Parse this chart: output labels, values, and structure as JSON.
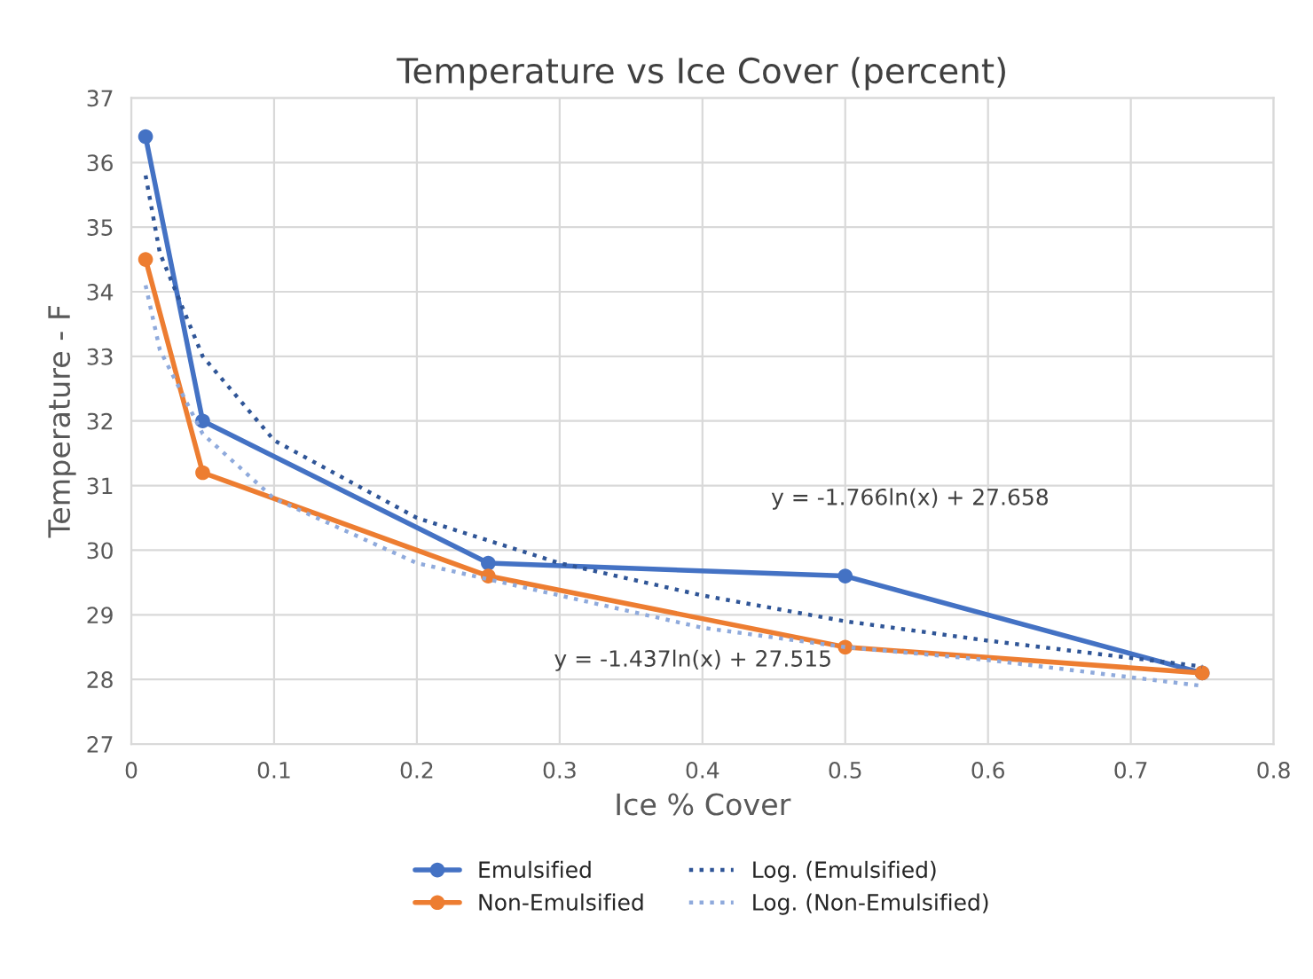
{
  "chart_data": {
    "type": "line",
    "title": "Temperature vs Ice Cover (percent)",
    "xlabel": "Ice % Cover",
    "ylabel": "Temperature - F",
    "xlim": [
      0,
      0.8
    ],
    "xticks": [
      0,
      0.1,
      0.2,
      0.3,
      0.4,
      0.5,
      0.6,
      0.7,
      0.8
    ],
    "ylim": [
      27,
      37
    ],
    "yticks": [
      27,
      28,
      29,
      30,
      31,
      32,
      33,
      34,
      35,
      36,
      37
    ],
    "grid": true,
    "legend": "bottom",
    "marker": "circle",
    "line_style": "solid",
    "series": [
      {
        "name": "Emulsified",
        "color": "#4472c4",
        "x": [
          0.01,
          0.05,
          0.25,
          0.5,
          0.75
        ],
        "values": [
          36.4,
          32.0,
          29.8,
          29.6,
          28.1
        ]
      },
      {
        "name": "Non-Emulsified",
        "color": "#ed7d31",
        "x": [
          0.01,
          0.05,
          0.25,
          0.5,
          0.75
        ],
        "values": [
          34.5,
          31.2,
          29.6,
          28.5,
          28.1
        ]
      },
      {
        "name": "Log. (Emulsified)",
        "color": "#2f5597",
        "marker": "none",
        "line_style": "dotted",
        "x": [
          0.01,
          0.02,
          0.05,
          0.1,
          0.2,
          0.3,
          0.4,
          0.5,
          0.6,
          0.75
        ],
        "values": [
          35.8,
          34.6,
          33.0,
          31.7,
          30.5,
          29.8,
          29.3,
          28.9,
          28.6,
          28.2
        ]
      },
      {
        "name": "Log. (Non-Emulsified)",
        "color": "#8faadc",
        "marker": "none",
        "line_style": "dotted",
        "x": [
          0.01,
          0.02,
          0.05,
          0.1,
          0.2,
          0.3,
          0.4,
          0.5,
          0.6,
          0.75
        ],
        "values": [
          34.1,
          33.1,
          31.8,
          30.8,
          29.8,
          29.3,
          28.8,
          28.5,
          28.3,
          27.9
        ]
      }
    ],
    "annotations": [
      "y = -1.766ln(x) + 27.658",
      "y = -1.437ln(x) + 27.515"
    ]
  }
}
